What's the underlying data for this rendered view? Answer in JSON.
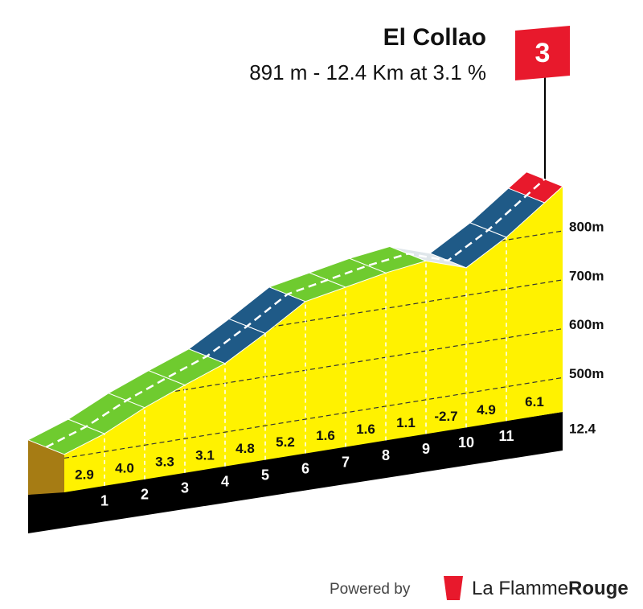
{
  "chart_data": {
    "type": "climb-profile",
    "title": "El Collao",
    "subtitle": "891 m - 12.4 Km at 3.1 %",
    "category": 3,
    "summit_altitude": 891,
    "distances": [
      0,
      1,
      2,
      3,
      4,
      5,
      6,
      7,
      8,
      9,
      10,
      11,
      12.4
    ],
    "gradients": [
      2.9,
      4.0,
      3.3,
      3.1,
      4.8,
      5.2,
      1.6,
      1.6,
      1.1,
      -2.7,
      4.9,
      6.1
    ],
    "value_labels": [
      "2.9",
      "4.0",
      "3.3",
      "3.1",
      "4.8",
      "5.2",
      "1.6",
      "1.6",
      "1.1",
      "-2.7",
      "4.9",
      "6.1"
    ],
    "colors": [
      "#6fcb2f",
      "#6fcb2f",
      "#6fcb2f",
      "#6fcb2f",
      "#1f5a87",
      "#1f5a87",
      "#6fcb2f",
      "#6fcb2f",
      "#6fcb2f",
      "#dfe6ea",
      "#1f5a87",
      "#1f5a87"
    ],
    "xticks": [
      1,
      2,
      3,
      4,
      5,
      6,
      7,
      8,
      9,
      10,
      11,
      12.4
    ],
    "ylim": [
      430,
      900
    ],
    "yticks": [
      {
        "value": 500,
        "label": "500m"
      },
      {
        "value": 600,
        "label": "600m"
      },
      {
        "value": 700,
        "label": "700m"
      },
      {
        "value": 800,
        "label": "800m"
      }
    ]
  },
  "footer": {
    "prefix": "Powered by",
    "brand": "La Flamme",
    "brand_accent": "Rouge"
  }
}
